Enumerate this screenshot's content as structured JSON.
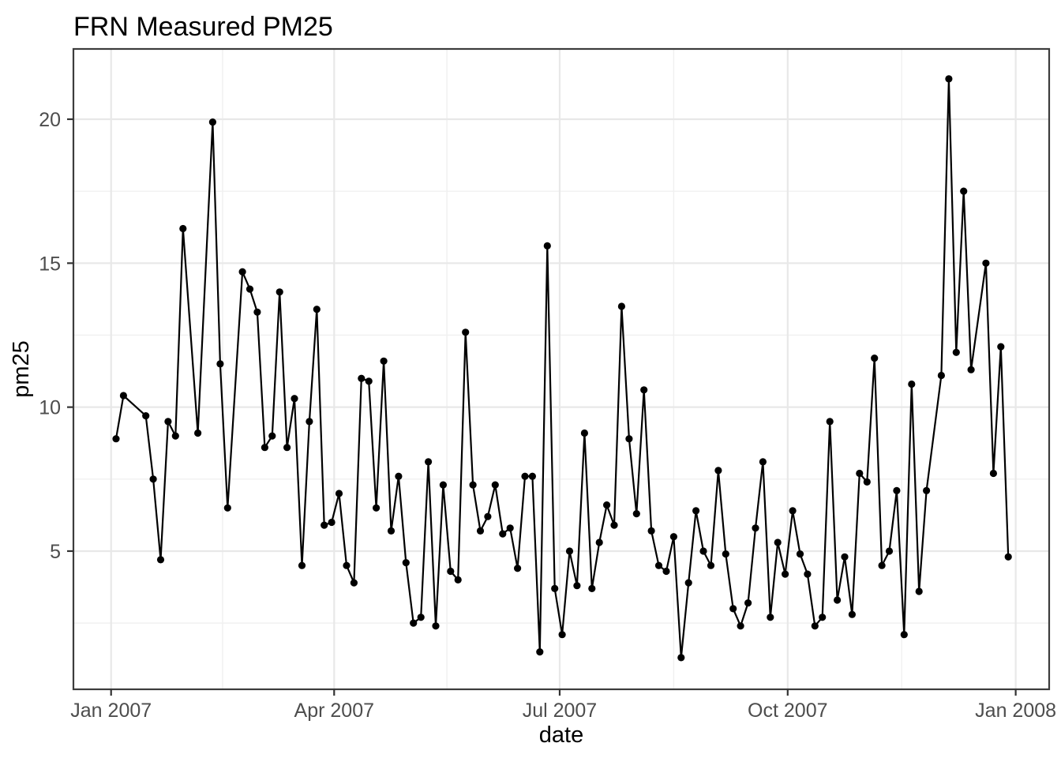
{
  "chart_data": {
    "type": "line",
    "title": "FRN Measured PM25",
    "xlabel": "date",
    "ylabel": "pm25",
    "x_unit": "days since 2007-01-01",
    "xlim": [
      -15.2,
      378.5
    ],
    "ylim": [
      0.2,
      22.44
    ],
    "grid": "on",
    "legend": "none",
    "x_ticks": [
      {
        "label": "Jan 2007",
        "day": 0
      },
      {
        "label": "Apr 2007",
        "day": 90
      },
      {
        "label": "Jul 2007",
        "day": 181
      },
      {
        "label": "Oct 2007",
        "day": 273
      },
      {
        "label": "Jan 2008",
        "day": 365
      }
    ],
    "x_minor_days": [
      45,
      135.5,
      227,
      319
    ],
    "y_ticks": [
      {
        "label": "5",
        "value": 5
      },
      {
        "label": "10",
        "value": 10
      },
      {
        "label": "15",
        "value": 15
      },
      {
        "label": "20",
        "value": 20
      }
    ],
    "y_minor": [
      2.5,
      7.5,
      12.5,
      17.5
    ],
    "points": [
      [
        2,
        8.9
      ],
      [
        5,
        10.4
      ],
      [
        14,
        9.7
      ],
      [
        17,
        7.5
      ],
      [
        20,
        4.7
      ],
      [
        23,
        9.5
      ],
      [
        26,
        9.0
      ],
      [
        29,
        16.2
      ],
      [
        35,
        9.1
      ],
      [
        41,
        19.9
      ],
      [
        44,
        11.5
      ],
      [
        47,
        6.5
      ],
      [
        53,
        14.7
      ],
      [
        56,
        14.1
      ],
      [
        59,
        13.3
      ],
      [
        62,
        8.6
      ],
      [
        65,
        9.0
      ],
      [
        68,
        14.0
      ],
      [
        71,
        8.6
      ],
      [
        74,
        10.3
      ],
      [
        77,
        4.5
      ],
      [
        80,
        9.5
      ],
      [
        83,
        13.4
      ],
      [
        86,
        5.9
      ],
      [
        89,
        6.0
      ],
      [
        92,
        7.0
      ],
      [
        95,
        4.5
      ],
      [
        98,
        3.9
      ],
      [
        101,
        11.0
      ],
      [
        104,
        10.9
      ],
      [
        107,
        6.5
      ],
      [
        110,
        11.6
      ],
      [
        113,
        5.7
      ],
      [
        116,
        7.6
      ],
      [
        119,
        4.6
      ],
      [
        122,
        2.5
      ],
      [
        125,
        2.7
      ],
      [
        128,
        8.1
      ],
      [
        131,
        2.4
      ],
      [
        134,
        7.3
      ],
      [
        137,
        4.3
      ],
      [
        140,
        4.0
      ],
      [
        143,
        12.6
      ],
      [
        146,
        7.3
      ],
      [
        149,
        5.7
      ],
      [
        152,
        6.2
      ],
      [
        155,
        7.3
      ],
      [
        158,
        5.6
      ],
      [
        161,
        5.8
      ],
      [
        164,
        4.4
      ],
      [
        167,
        7.6
      ],
      [
        170,
        7.6
      ],
      [
        173,
        1.5
      ],
      [
        176,
        15.6
      ],
      [
        179,
        3.7
      ],
      [
        182,
        2.1
      ],
      [
        185,
        5.0
      ],
      [
        188,
        3.8
      ],
      [
        191,
        9.1
      ],
      [
        194,
        3.7
      ],
      [
        197,
        5.3
      ],
      [
        200,
        6.6
      ],
      [
        203,
        5.9
      ],
      [
        206,
        13.5
      ],
      [
        209,
        8.9
      ],
      [
        212,
        6.3
      ],
      [
        215,
        10.6
      ],
      [
        218,
        5.7
      ],
      [
        221,
        4.5
      ],
      [
        224,
        4.3
      ],
      [
        227,
        5.5
      ],
      [
        230,
        1.3
      ],
      [
        233,
        3.9
      ],
      [
        236,
        6.4
      ],
      [
        239,
        5.0
      ],
      [
        242,
        4.5
      ],
      [
        245,
        7.8
      ],
      [
        248,
        4.9
      ],
      [
        251,
        3.0
      ],
      [
        254,
        2.4
      ],
      [
        257,
        3.2
      ],
      [
        260,
        5.8
      ],
      [
        263,
        8.1
      ],
      [
        266,
        2.7
      ],
      [
        269,
        5.3
      ],
      [
        272,
        4.2
      ],
      [
        275,
        6.4
      ],
      [
        278,
        4.9
      ],
      [
        281,
        4.2
      ],
      [
        284,
        2.4
      ],
      [
        287,
        2.7
      ],
      [
        290,
        9.5
      ],
      [
        293,
        3.3
      ],
      [
        296,
        4.8
      ],
      [
        299,
        2.8
      ],
      [
        302,
        7.7
      ],
      [
        305,
        7.4
      ],
      [
        308,
        11.7
      ],
      [
        311,
        4.5
      ],
      [
        314,
        5.0
      ],
      [
        317,
        7.1
      ],
      [
        320,
        2.1
      ],
      [
        323,
        10.8
      ],
      [
        326,
        3.6
      ],
      [
        329,
        7.1
      ],
      [
        335,
        11.1
      ],
      [
        338,
        21.4
      ],
      [
        341,
        11.9
      ],
      [
        344,
        17.5
      ],
      [
        347,
        11.3
      ],
      [
        353,
        15.0
      ],
      [
        356,
        7.7
      ],
      [
        359,
        12.1
      ],
      [
        362,
        4.8
      ]
    ],
    "colors": {
      "series": "#000000",
      "grid_major": "#e8e8e8",
      "grid_minor": "#f0f0f0",
      "panel_border": "#3c3c3c",
      "tick_mark": "#333333",
      "tick_label": "#4d4d4d",
      "text": "#000000",
      "background": "#ffffff"
    }
  }
}
